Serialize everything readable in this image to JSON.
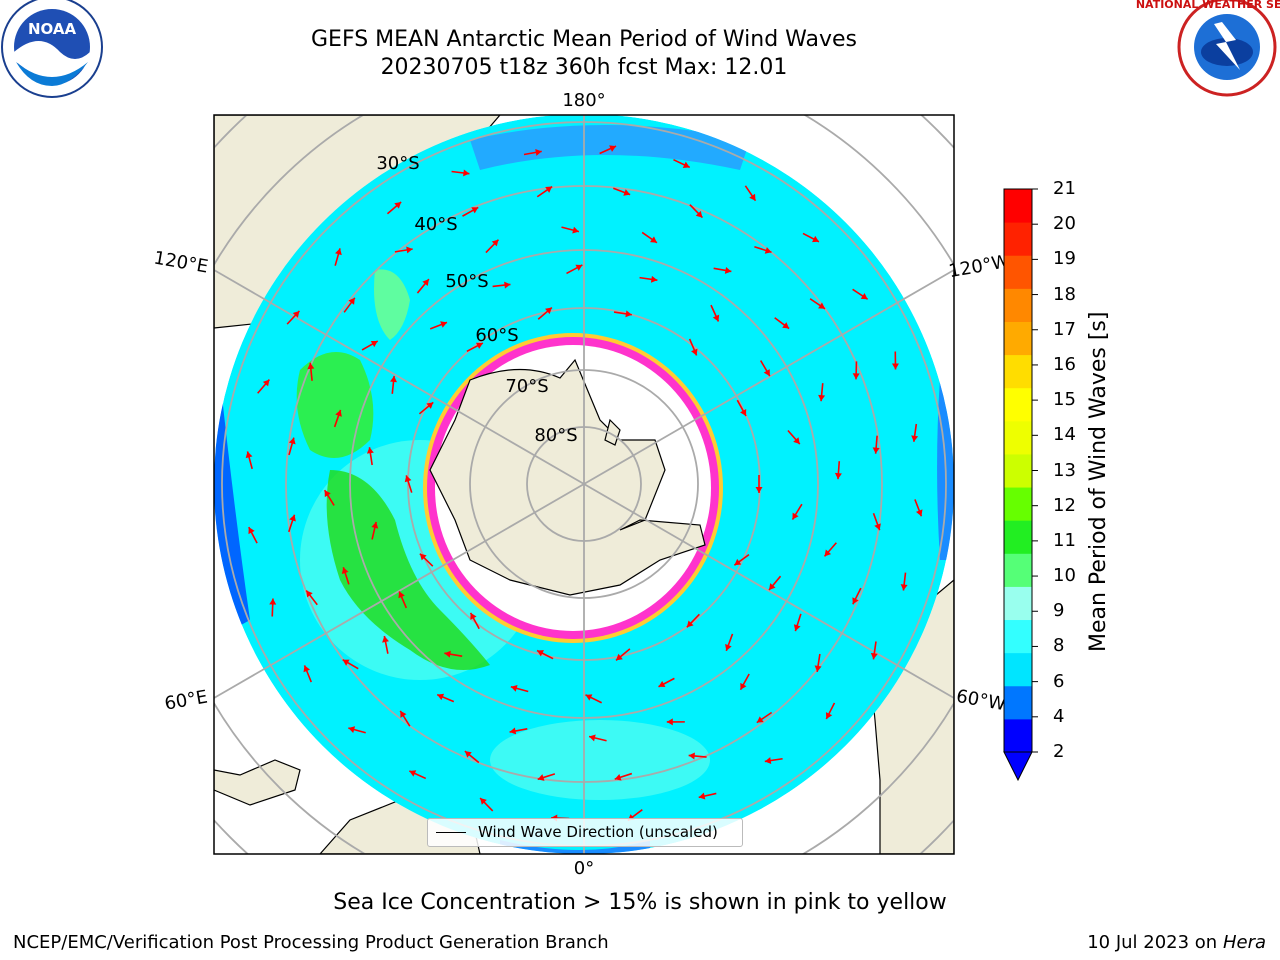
{
  "header": {
    "title_line1": "GEFS MEAN Antarctic Mean Period of Wind Waves",
    "title_line2": "20230705 t18z 360h fcst   Max: 12.01"
  },
  "logos": {
    "left": {
      "text": "NOAA",
      "icon": "noaa-logo-icon"
    },
    "right": {
      "text": "NATIONAL WEATHER SERVICE",
      "icon": "nws-logo-icon"
    }
  },
  "map": {
    "longitude_labels": [
      "180°",
      "120°E",
      "120°W",
      "60°E",
      "60°W",
      "0°"
    ],
    "latitude_labels": [
      "30°S",
      "40°S",
      "50°S",
      "60°S",
      "70°S",
      "80°S"
    ],
    "legend_label": "Wind Wave Direction (unscaled)",
    "colors": {
      "land": "#efecd9",
      "ocean_low": "#00ffff",
      "ice_edge": "#ff33cc",
      "arrow": "#ff0000"
    }
  },
  "colorbar": {
    "title": "Mean Period of Wind Waves [s]",
    "ticks": [
      "21",
      "20",
      "19",
      "18",
      "17",
      "16",
      "15",
      "14",
      "13",
      "12",
      "11",
      "10",
      "9",
      "8",
      "6",
      "4",
      "2"
    ],
    "colors": [
      "#0000ff",
      "#0077ff",
      "#00e5ff",
      "#33ffff",
      "#99ffee",
      "#55ff77",
      "#22ee22",
      "#66ff00",
      "#ccff00",
      "#eeff00",
      "#ffff00",
      "#ffdd00",
      "#ffaa00",
      "#ff8800",
      "#ff5500",
      "#ff2200",
      "#ff0000"
    ]
  },
  "notes": {
    "sea_ice": "Sea Ice Concentration > 15% is shown in pink to yellow"
  },
  "footer": {
    "left": "NCEP/EMC/Verification Post Processing Product Generation Branch",
    "right_date": "10 Jul 2023 on ",
    "right_host": "Hera"
  }
}
